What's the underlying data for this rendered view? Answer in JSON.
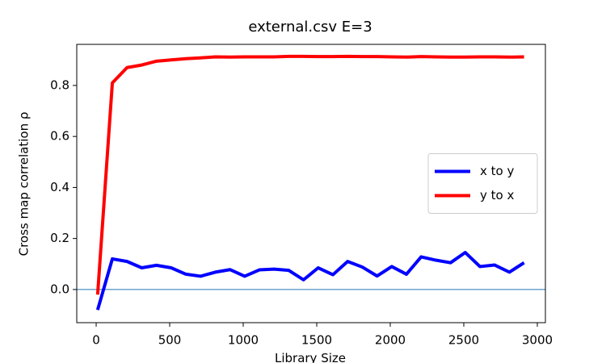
{
  "chart_data": {
    "type": "line",
    "title": "external.csv  E=3",
    "x_label": "Library Size",
    "y_label": "Cross map correlation  ρ",
    "x": [
      10,
      110,
      210,
      310,
      410,
      510,
      610,
      710,
      810,
      910,
      1010,
      1110,
      1210,
      1310,
      1410,
      1510,
      1610,
      1710,
      1810,
      1910,
      2010,
      2110,
      2210,
      2310,
      2410,
      2510,
      2610,
      2710,
      2810,
      2910
    ],
    "series": [
      {
        "name": "x to y",
        "color": "#0000ff",
        "values": [
          -0.08,
          0.12,
          0.11,
          0.085,
          0.095,
          0.085,
          0.06,
          0.052,
          0.068,
          0.078,
          0.052,
          0.077,
          0.08,
          0.075,
          0.038,
          0.085,
          0.058,
          0.11,
          0.088,
          0.053,
          0.09,
          0.06,
          0.128,
          0.115,
          0.105,
          0.145,
          0.09,
          0.096,
          0.068,
          0.105
        ]
      },
      {
        "name": "y to x",
        "color": "#ff0000",
        "values": [
          -0.02,
          0.81,
          0.87,
          0.88,
          0.895,
          0.9,
          0.905,
          0.908,
          0.912,
          0.911,
          0.912,
          0.912,
          0.912,
          0.914,
          0.914,
          0.913,
          0.913,
          0.914,
          0.913,
          0.913,
          0.912,
          0.911,
          0.913,
          0.912,
          0.911,
          0.911,
          0.912,
          0.912,
          0.911,
          0.912
        ]
      }
    ],
    "hline": 0,
    "hline_color": "#1f77b4",
    "xlim": [
      -132,
      3055
    ],
    "xticks": [
      0,
      500,
      1000,
      1500,
      2000,
      2500,
      3000
    ],
    "ylim": [
      -0.13,
      0.961
    ],
    "yticks": [
      {
        "value": 0,
        "label": "0.0"
      },
      0.2,
      0.4,
      0.6,
      0.8
    ],
    "legend": "center right"
  }
}
